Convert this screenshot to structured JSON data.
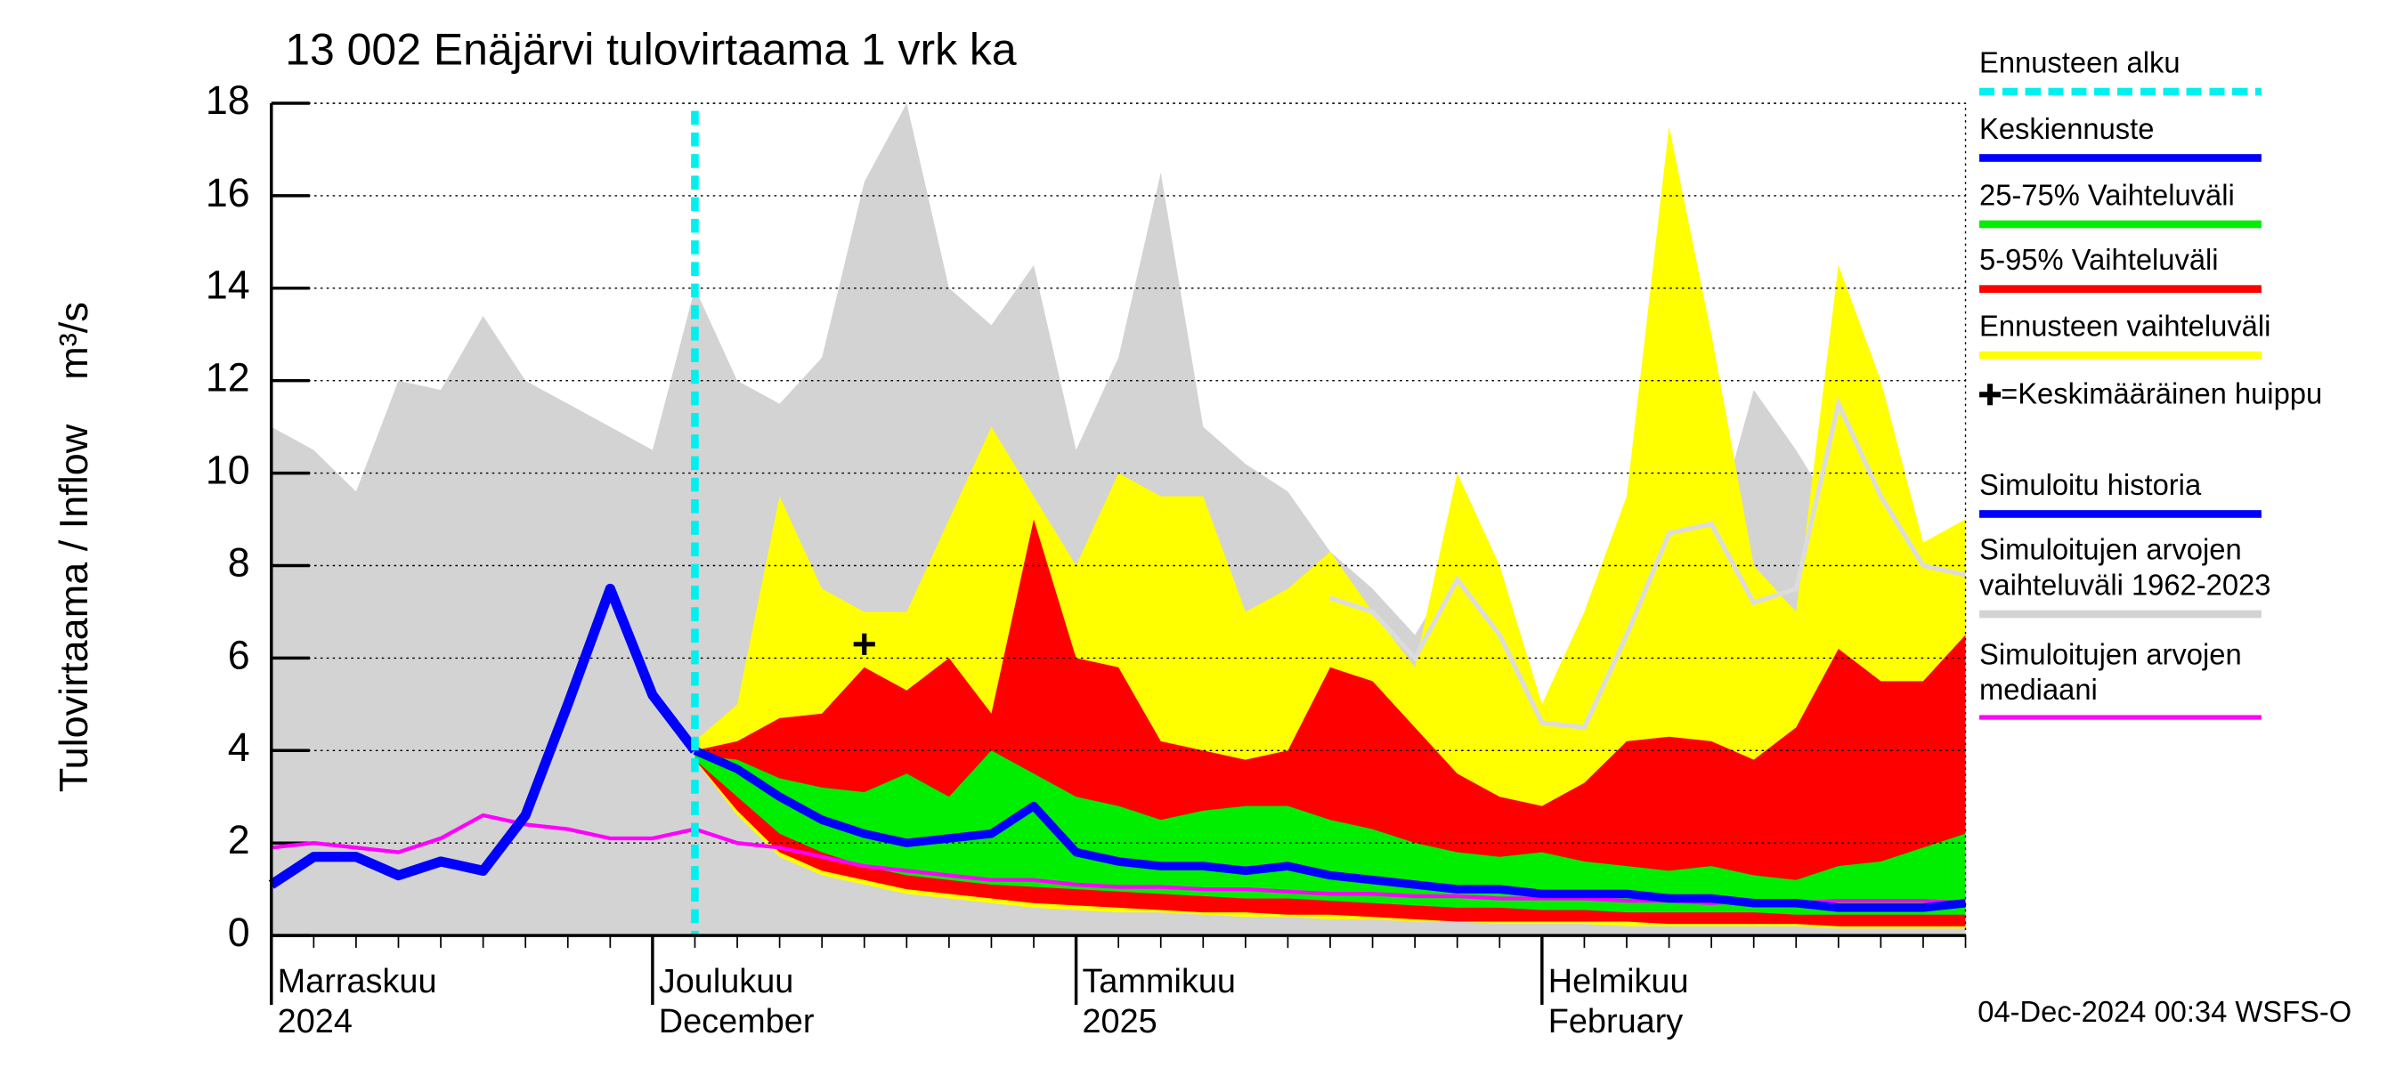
{
  "chart_data": {
    "type": "hydrograph",
    "title": "13 002 Enäjärvi tulovirtaama 1 vrk ka",
    "y_label": "Tulovirtaama / Inflow    m³/s",
    "timestamp": "04-Dec-2024 00:34 WSFS-O",
    "categories": [
      "Marraskuu",
      null,
      null,
      null,
      null,
      null,
      null,
      null,
      null,
      "Joulukuu",
      null,
      null,
      null,
      null,
      null,
      null,
      null,
      null,
      null,
      "Tammikuu",
      null,
      null,
      null,
      null,
      null,
      null,
      null,
      null,
      null,
      null,
      "Helmikuu",
      null,
      null,
      null,
      null,
      null,
      null,
      null,
      null,
      null,
      null
    ],
    "categories_line2": [
      "2024",
      null,
      null,
      null,
      null,
      null,
      null,
      null,
      null,
      "December",
      null,
      null,
      null,
      null,
      null,
      null,
      null,
      null,
      null,
      "2025",
      null,
      null,
      null,
      null,
      null,
      null,
      null,
      null,
      null,
      null,
      "February",
      null,
      null,
      null,
      null,
      null,
      null,
      null,
      null,
      null,
      null
    ],
    "ylim": [
      0,
      18
    ],
    "yticks": [
      0,
      2,
      4,
      6,
      8,
      10,
      12,
      14,
      16,
      18
    ],
    "grid": true,
    "forecast_start": {
      "name": "Ennusteen alku",
      "color": "#00f0f0"
    },
    "series": [
      {
        "name": "Keskiennuste",
        "kind": "line",
        "color": "#0000ff",
        "values": [
          null,
          null,
          null,
          null,
          null,
          null,
          null,
          null,
          null,
          null,
          4,
          3.6,
          3,
          2.5,
          2.2,
          2,
          2.1,
          2.2,
          2.8,
          1.8,
          1.6,
          1.5,
          1.5,
          1.4,
          1.5,
          1.3,
          1.2,
          1.1,
          1,
          1,
          0.9,
          0.9,
          0.9,
          0.8,
          0.8,
          0.7,
          0.7,
          0.6,
          0.6,
          0.6,
          0.7
        ]
      },
      {
        "name": "25-75% Vaihteluväli",
        "kind": "band",
        "color": "#00ee00",
        "high": [
          null,
          null,
          null,
          null,
          null,
          null,
          null,
          null,
          null,
          null,
          3.9,
          3.8,
          3.4,
          3.2,
          3.1,
          3.5,
          3,
          4,
          3.5,
          3,
          2.8,
          2.5,
          2.7,
          2.8,
          2.8,
          2.5,
          2.3,
          2,
          1.8,
          1.7,
          1.8,
          1.6,
          1.5,
          1.4,
          1.5,
          1.3,
          1.2,
          1.5,
          1.6,
          1.9,
          2.2
        ],
        "low": [
          null,
          null,
          null,
          null,
          null,
          null,
          null,
          null,
          null,
          null,
          3.8,
          3,
          2.2,
          1.8,
          1.5,
          1.3,
          1.2,
          1.1,
          1.05,
          1,
          0.95,
          0.9,
          0.85,
          0.8,
          0.8,
          0.75,
          0.7,
          0.65,
          0.6,
          0.6,
          0.55,
          0.55,
          0.5,
          0.5,
          0.5,
          0.5,
          0.45,
          0.45,
          0.45,
          0.45,
          0.45
        ]
      },
      {
        "name": "5-95% Vaihteluväli",
        "kind": "band",
        "color": "#ff0000",
        "high": [
          null,
          null,
          null,
          null,
          null,
          null,
          null,
          null,
          null,
          null,
          4,
          4.2,
          4.7,
          4.8,
          5.8,
          5.3,
          6,
          4.8,
          9,
          6,
          5.8,
          4.2,
          4,
          3.8,
          4,
          5.8,
          5.5,
          4.5,
          3.5,
          3,
          2.8,
          3.3,
          4.2,
          4.3,
          4.2,
          3.8,
          4.5,
          6.2,
          5.5,
          5.5,
          6.5
        ],
        "low": [
          null,
          null,
          null,
          null,
          null,
          null,
          null,
          null,
          null,
          null,
          3.8,
          2.7,
          1.8,
          1.4,
          1.2,
          1,
          0.9,
          0.8,
          0.7,
          0.65,
          0.6,
          0.55,
          0.5,
          0.5,
          0.45,
          0.45,
          0.4,
          0.35,
          0.3,
          0.3,
          0.3,
          0.3,
          0.3,
          0.25,
          0.25,
          0.25,
          0.25,
          0.2,
          0.2,
          0.2,
          0.2
        ]
      },
      {
        "name": "Ennusteen vaihteluväli",
        "kind": "band",
        "color": "#ffff00",
        "high": [
          null,
          null,
          null,
          null,
          null,
          null,
          null,
          null,
          null,
          null,
          4.2,
          5,
          9.5,
          7.5,
          7,
          7,
          9,
          11,
          9.5,
          8,
          10,
          9.5,
          9.5,
          7,
          7.5,
          8.3,
          7,
          5.8,
          10,
          8,
          5,
          7,
          9.5,
          17.5,
          13,
          8,
          7,
          14.5,
          12,
          8.5,
          9
        ],
        "low": [
          null,
          null,
          null,
          null,
          null,
          null,
          null,
          null,
          null,
          null,
          3.8,
          2.6,
          1.7,
          1.3,
          1.1,
          0.9,
          0.8,
          0.7,
          0.6,
          0.55,
          0.5,
          0.5,
          0.45,
          0.4,
          0.4,
          0.35,
          0.35,
          0.3,
          0.3,
          0.25,
          0.25,
          0.25,
          0.2,
          0.2,
          0.2,
          0.2,
          0.2,
          0.15,
          0.15,
          0.15,
          0.15
        ]
      },
      {
        "name": "=Keskimääräinen huippu",
        "kind": "marker",
        "color": "#000000",
        "values": [
          null,
          null,
          null,
          null,
          null,
          null,
          null,
          null,
          null,
          null,
          null,
          null,
          null,
          null,
          6.3,
          null,
          null,
          null,
          null,
          null,
          null,
          null,
          null,
          null,
          null,
          null,
          null,
          null,
          null,
          null,
          null,
          null,
          null,
          null,
          null,
          null,
          null,
          null,
          null,
          null,
          null
        ]
      },
      {
        "name": "Simuloitu historia",
        "kind": "line",
        "color": "#0000ff",
        "values": [
          1.1,
          1.7,
          1.7,
          1.3,
          1.6,
          1.4,
          2.6,
          5,
          7.5,
          5.2,
          4,
          null,
          null,
          null,
          null,
          null,
          null,
          null,
          null,
          null,
          null,
          null,
          null,
          null,
          null,
          null,
          null,
          null,
          null,
          null,
          null,
          null,
          null,
          null,
          null,
          null,
          null,
          null,
          null,
          null,
          null
        ]
      },
      {
        "name": "Simuloitujen arvojen vaihteluväli 1962-2023",
        "kind": "band",
        "color": "#d3d3d3",
        "high": [
          11,
          10.5,
          9.6,
          12,
          11.8,
          13.4,
          12,
          11.5,
          11,
          10.5,
          14,
          12,
          11.5,
          12.5,
          16.3,
          18,
          14,
          13.2,
          14.5,
          10.5,
          12.5,
          16.5,
          11,
          10.2,
          9.6,
          8.3,
          7.5,
          6.5,
          8,
          7,
          5,
          6.2,
          8.5,
          9,
          8.5,
          11.8,
          10.5,
          9,
          10.5,
          8.5,
          8.7
        ],
        "low": [
          0,
          0,
          0,
          0,
          0,
          0,
          0,
          0,
          0,
          0,
          0,
          0,
          0,
          0,
          0,
          0,
          0,
          0,
          0,
          0,
          0,
          0,
          0,
          0,
          0,
          0,
          0,
          0,
          0,
          0,
          0,
          0,
          0,
          0,
          0,
          0,
          0,
          0,
          0,
          0,
          0
        ]
      },
      {
        "name": "Simuloitujen arvojen mediaani",
        "kind": "line",
        "color": "#ff00ff",
        "values": [
          1.9,
          2,
          1.9,
          1.8,
          2.1,
          2.6,
          2.4,
          2.3,
          2.1,
          2.1,
          2.3,
          2,
          1.9,
          1.7,
          1.5,
          1.4,
          1.3,
          1.2,
          1.2,
          1.1,
          1.05,
          1.05,
          1,
          1,
          0.95,
          0.9,
          0.9,
          0.85,
          0.85,
          0.8,
          0.8,
          0.8,
          0.75,
          0.75,
          0.7,
          0.75,
          0.7,
          0.75,
          0.75,
          0.75,
          0.7
        ]
      }
    ],
    "extra_lines": [
      {
        "color": "#dcdcdc",
        "values": [
          null,
          null,
          null,
          null,
          null,
          null,
          null,
          null,
          null,
          null,
          null,
          null,
          null,
          null,
          null,
          null,
          null,
          null,
          null,
          null,
          null,
          null,
          null,
          null,
          null,
          7.3,
          7,
          6,
          7.7,
          6.5,
          4.6,
          4.5,
          6.5,
          8.7,
          8.9,
          7.2,
          7.5,
          11.5,
          9.5,
          8,
          7.8
        ]
      }
    ]
  }
}
